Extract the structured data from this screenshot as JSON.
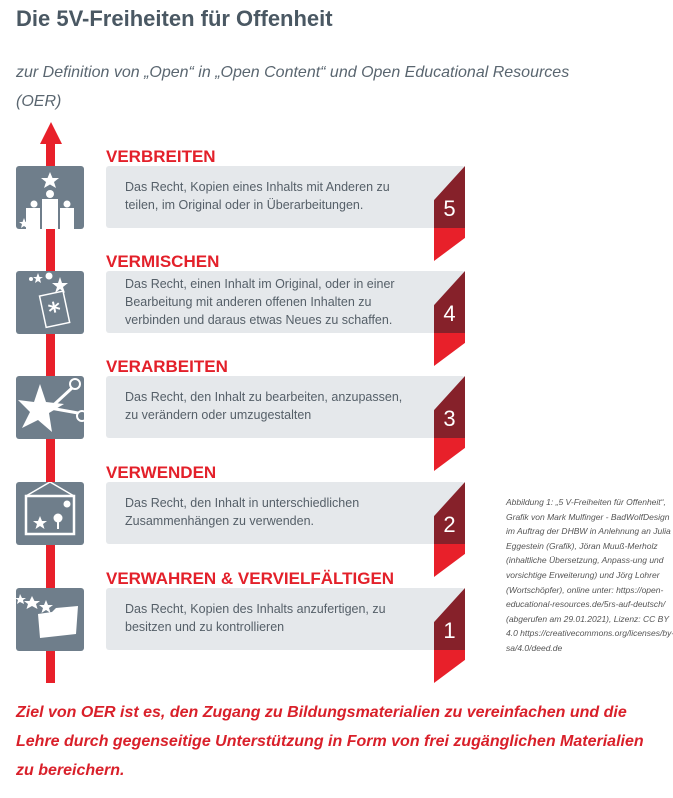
{
  "title": "Die 5V-Freiheiten für Offenheit",
  "subtitle": "zur Definition von „Open“ in „Open Content“ und Open Educational Resources (OER)",
  "colors": {
    "accent_red": "#e8202a",
    "dark_red": "#86212a",
    "icon_bg": "#6f7e8b",
    "box_bg": "#e5e8eb"
  },
  "sections": [
    {
      "heading": "VERBREITEN",
      "text": "Das Recht, Kopien eines Inhalts mit Anderen zu teilen, im Original oder in Überarbeitungen.",
      "number": "5",
      "icon": "people-sharing-icon"
    },
    {
      "heading": "VERMISCHEN",
      "text": "Das Recht, einen Inhalt im Original, oder in einer Bearbeitung mit anderen offenen Inhalten zu verbinden und daraus etwas Neues zu schaffen.",
      "number": "4",
      "icon": "remix-document-icon"
    },
    {
      "heading": "VERARBEITEN",
      "text": "Das Recht, den Inhalt zu bearbeiten, anzupassen, zu verändern oder umzugestalten",
      "number": "3",
      "icon": "scissors-star-icon"
    },
    {
      "heading": "VERWENDEN",
      "text": "Das Recht, den Inhalt in unterschiedlichen Zusammenhängen zu verwenden.",
      "number": "2",
      "icon": "hanging-picture-icon"
    },
    {
      "heading": "VERWAHREN & VERVIELFÄLTIGEN",
      "text": "Das Recht, Kopien des Inhalts anzufertigen, zu besitzen und zu kontrollieren",
      "number": "1",
      "icon": "folder-stars-icon"
    }
  ],
  "caption": "Abbildung 1: „5 V-Freiheiten für Offenheit“, Grafik von Mark Mulfinger - BadWolfDesign im Auftrag der DHBW in Anlehnung an Julia Eggestein (Grafik), Jöran Muuß-Merholz (inhaltliche Übersetzung, Anpass-ung und vorsichtige Erweiterung) und Jörg Lohrer (Wortschöpfer), online unter: https://open-educational-resources.de/5rs-auf-deutsch/ (abgerufen am 29.01.2021), Lizenz: CC BY 4.0 https://creativecommons.org/licenses/by-sa/4.0/deed.de",
  "footer": "Ziel von OER ist es, den Zugang zu Bildungsmaterialien zu vereinfachen und die Lehre durch gegenseitige Unterstützung in Form von frei zugänglichen Materialien zu bereichern."
}
